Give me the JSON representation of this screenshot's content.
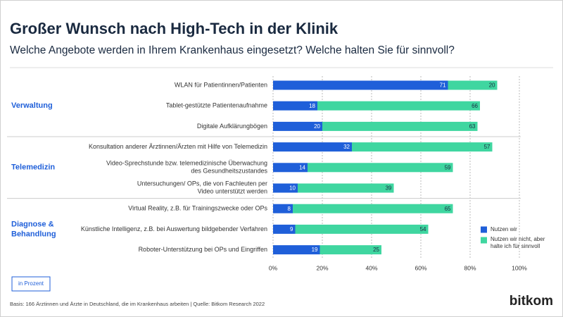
{
  "chart_data": {
    "type": "stacked-barh",
    "title": "Großer Wunsch nach High-Tech in der Klinik",
    "subtitle": "Welche Angebote werden in Ihrem Krankenhaus eingesetzt? Welche halten Sie für sinnvoll?",
    "groups": [
      {
        "label": "Verwaltung",
        "categories": [
          "WLAN für Patientinnen/Patienten",
          "Tablet-gestützte Patientenaufnahme",
          "Digitale Aufklärungbögen"
        ]
      },
      {
        "label": "Telemedizin",
        "categories": [
          "Konsultation anderer Ärztinnen/Ärzten mit Hilfe von Telemedizin",
          "Video-Sprechstunde bzw. telemedizinische Überwachung\ndes Gesundheitszustandes",
          "Untersuchungen/ OPs, die von Fachleuten per\nVideo unterstützt werden"
        ]
      },
      {
        "label": "Diagnose &\nBehandlung",
        "categories": [
          "Virtual Reality, z.B. für Trainingszwecke oder OPs",
          "Künstliche Intelligenz, z.B. bei Auswertung bildgebender Verfahren",
          "Roboter-Unterstützung bei OPs und Eingriffen"
        ]
      }
    ],
    "series": [
      {
        "name": "Nutzen wir",
        "color": "#1f5fd9",
        "values": [
          71,
          18,
          20,
          32,
          14,
          10,
          8,
          9,
          19
        ]
      },
      {
        "name": "Nutzen wir nicht, aber\nhalte ich für sinnvoll",
        "color": "#3fd6a0",
        "values": [
          20,
          66,
          63,
          57,
          59,
          39,
          65,
          54,
          25
        ]
      }
    ],
    "xlim": [
      0,
      100
    ],
    "xticks": [
      {
        "value": 0,
        "label": "0%"
      },
      {
        "value": 20,
        "label": "20%"
      },
      {
        "value": 40,
        "label": "40%"
      },
      {
        "value": 60,
        "label": "60%"
      },
      {
        "value": 80,
        "label": "80%"
      },
      {
        "value": 100,
        "label": "100%"
      }
    ],
    "grid": true,
    "unit_note": "in Prozent",
    "source": "Basis: 166 Ärztinnen und Ärzte in Deutschland, die im Krankenhaus arbeiten | Quelle: Bitkom Research 2022",
    "brand": "bitkom"
  }
}
